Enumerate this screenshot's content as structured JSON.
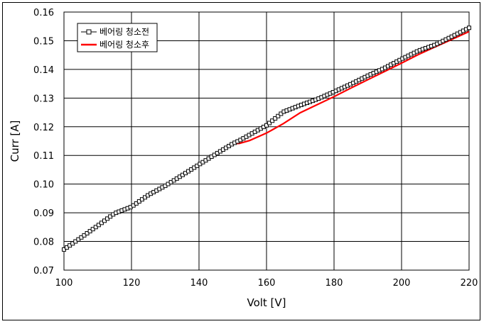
{
  "chart_data": {
    "type": "line",
    "xlabel": "Volt [V]",
    "ylabel": "Curr [A]",
    "xlim": [
      100,
      220
    ],
    "ylim": [
      0.07,
      0.16
    ],
    "x_ticks": [
      100,
      120,
      140,
      160,
      180,
      200,
      220
    ],
    "y_ticks": [
      "0.07",
      "0.08",
      "0.09",
      "0.10",
      "0.11",
      "0.12",
      "0.13",
      "0.14",
      "0.15",
      "0.16"
    ],
    "grid": true,
    "legend_position": "top-left",
    "x": [
      100,
      105,
      110,
      115,
      120,
      125,
      130,
      135,
      140,
      145,
      150,
      152,
      155,
      160,
      165,
      170,
      175,
      180,
      185,
      190,
      195,
      200,
      205,
      210,
      215,
      220
    ],
    "series": [
      {
        "name": "베어링 청소전",
        "color": "#000000",
        "marker": "square",
        "values": [
          0.0772,
          0.0813,
          0.0855,
          0.0898,
          0.0921,
          0.0962,
          0.0994,
          0.1031,
          0.1068,
          0.1105,
          0.1141,
          0.1152,
          0.1172,
          0.1205,
          0.1252,
          0.1275,
          0.1296,
          0.1322,
          0.1349,
          0.1378,
          0.1405,
          0.1436,
          0.1465,
          0.1486,
          0.1515,
          0.1545
        ]
      },
      {
        "name": "베어링 청소후",
        "color": "#ff0000",
        "marker": "none",
        "values": [
          0.0772,
          0.0813,
          0.0855,
          0.0898,
          0.0921,
          0.0962,
          0.0994,
          0.1031,
          0.1068,
          0.1105,
          0.1141,
          0.1142,
          0.1152,
          0.1178,
          0.1211,
          0.1249,
          0.1277,
          0.1305,
          0.1335,
          0.1364,
          0.1393,
          0.1422,
          0.1452,
          0.1479,
          0.1505,
          0.1532
        ]
      }
    ]
  }
}
